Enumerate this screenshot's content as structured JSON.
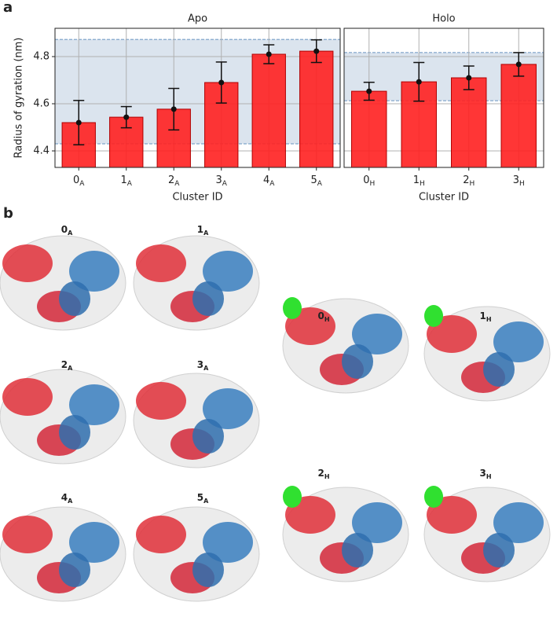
{
  "chart_data": [
    {
      "type": "bar",
      "title": "Apo",
      "ylabel": "Radius of gyration (nm)",
      "xlabel": "Cluster ID",
      "categories": [
        "0",
        "1",
        "2",
        "3",
        "4",
        "5"
      ],
      "category_subscript": "A",
      "values": [
        4.52,
        4.543,
        4.577,
        4.69,
        4.81,
        4.823
      ],
      "errors": [
        0.094,
        0.045,
        0.088,
        0.087,
        0.04,
        0.048
      ],
      "color": "#ff2020",
      "edge_color": "#b00000",
      "band": [
        4.43,
        4.873
      ],
      "band_color": "#dbe4ee",
      "ylim": [
        4.33,
        4.92
      ],
      "yticks": [
        4.4,
        4.6,
        4.8
      ],
      "ytick_labels": true,
      "grid": true
    },
    {
      "type": "bar",
      "title": "Holo",
      "xlabel": "Cluster ID",
      "categories": [
        "0",
        "1",
        "2",
        "3"
      ],
      "category_subscript": "H",
      "values": [
        4.653,
        4.693,
        4.71,
        4.767
      ],
      "errors": [
        0.038,
        0.082,
        0.05,
        0.05
      ],
      "color": "#ff2020",
      "edge_color": "#b00000",
      "band": [
        4.613,
        4.817
      ],
      "band_color": "#dbe4ee",
      "ylim": [
        4.33,
        4.92
      ],
      "yticks": [
        4.4,
        4.6,
        4.8
      ],
      "ytick_labels": false,
      "grid": true
    }
  ],
  "panel_labels": [
    "a",
    "b"
  ],
  "structures": [
    {
      "label": "0",
      "sub": "A"
    },
    {
      "label": "1",
      "sub": "A"
    },
    {
      "label": "0",
      "sub": "H"
    },
    {
      "label": "1",
      "sub": "H"
    },
    {
      "label": "2",
      "sub": "A"
    },
    {
      "label": "3",
      "sub": "A"
    },
    {
      "label": "2",
      "sub": "H"
    },
    {
      "label": "3",
      "sub": "H"
    },
    {
      "label": "4",
      "sub": "A"
    },
    {
      "label": "5",
      "sub": "A"
    }
  ]
}
